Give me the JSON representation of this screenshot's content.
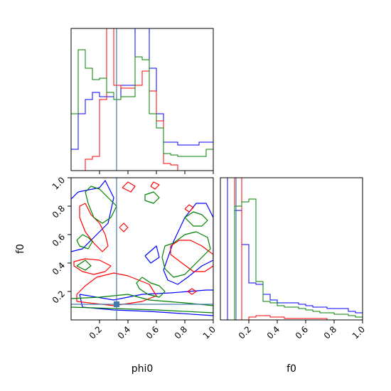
{
  "chart_data": {
    "type": "corner",
    "parameters": [
      "phi0",
      "f0"
    ],
    "truth": {
      "phi0": 0.32,
      "f0": 0.11
    },
    "truth_color": "#4477aa",
    "series": [
      {
        "color": "#0000ff"
      },
      {
        "color": "#ff0000"
      },
      {
        "color": "#008000"
      }
    ],
    "bins": [
      0.0,
      0.05,
      0.1,
      0.15,
      0.2,
      0.25,
      0.3,
      0.35,
      0.4,
      0.45,
      0.5,
      0.55,
      0.6,
      0.65,
      0.7,
      0.75,
      0.8,
      0.85,
      0.9,
      0.95,
      1.0
    ],
    "hist_phi0": {
      "ylim": [
        0,
        1.0
      ],
      "blue": [
        0.15,
        0.4,
        0.5,
        0.55,
        0.52,
        0.52,
        0.5,
        0.6,
        0.6,
        1.2,
        1.1,
        0.72,
        0.4,
        0.2,
        0.2,
        0.18,
        0.18,
        0.18,
        0.2,
        0.2
      ],
      "red": [
        0.0,
        0.0,
        0.08,
        0.1,
        0.5,
        1.2,
        0.6,
        0.58,
        0.58,
        0.6,
        0.7,
        0.56,
        0.35,
        0.05,
        0.04,
        0.0,
        0.0,
        0.0,
        0.0,
        0.0
      ],
      "green": [
        0.4,
        0.85,
        0.72,
        0.64,
        0.65,
        0.55,
        0.5,
        0.52,
        0.52,
        0.8,
        0.78,
        0.4,
        0.3,
        0.12,
        0.11,
        0.1,
        0.1,
        0.1,
        0.1,
        0.15
      ]
    },
    "hist_f0": {
      "ylim": [
        0,
        1.0
      ],
      "blue": [
        0.0,
        1.0,
        0.77,
        0.53,
        0.26,
        0.25,
        0.18,
        0.14,
        0.12,
        0.12,
        0.12,
        0.11,
        0.1,
        0.09,
        0.09,
        0.08,
        0.08,
        0.08,
        0.06,
        0.05
      ],
      "red": [
        0.0,
        0.0,
        1.0,
        0.0,
        0.02,
        0.03,
        0.03,
        0.02,
        0.02,
        0.01,
        0.01,
        0.01,
        0.01,
        0.01,
        0.01,
        0.0,
        0.0,
        0.0,
        0.0,
        0.0
      ],
      "green": [
        0.0,
        0.0,
        0.8,
        0.83,
        0.85,
        0.27,
        0.13,
        0.12,
        0.1,
        0.09,
        0.09,
        0.08,
        0.07,
        0.06,
        0.05,
        0.05,
        0.04,
        0.04,
        0.03,
        0.02
      ]
    },
    "contours": {
      "blue": [
        [
          [
            0.06,
            0.18
          ],
          [
            0.3,
            0.14
          ],
          [
            0.5,
            0.18
          ],
          [
            0.7,
            0.19
          ],
          [
            0.95,
            0.21
          ],
          [
            1.0,
            0.21
          ],
          [
            1.0,
            0.03
          ],
          [
            0.55,
            0.06
          ],
          [
            0.3,
            0.07
          ],
          [
            0.08,
            0.09
          ],
          [
            0.06,
            0.18
          ]
        ],
        [
          [
            0.05,
            0.9
          ],
          [
            0.2,
            0.93
          ],
          [
            0.24,
            0.98
          ],
          [
            0.3,
            0.86
          ],
          [
            0.26,
            0.68
          ],
          [
            0.16,
            0.58
          ],
          [
            0.08,
            0.5
          ],
          [
            0.0,
            0.48
          ],
          [
            0.0,
            0.85
          ],
          [
            0.05,
            0.9
          ]
        ],
        [
          [
            0.65,
            0.35
          ],
          [
            0.72,
            0.55
          ],
          [
            0.8,
            0.72
          ],
          [
            0.88,
            0.82
          ],
          [
            0.95,
            0.82
          ],
          [
            1.0,
            0.72
          ],
          [
            1.0,
            0.42
          ],
          [
            0.92,
            0.38
          ],
          [
            0.82,
            0.3
          ],
          [
            0.75,
            0.25
          ],
          [
            0.68,
            0.28
          ],
          [
            0.65,
            0.35
          ]
        ],
        [
          [
            0.52,
            0.45
          ],
          [
            0.6,
            0.52
          ],
          [
            0.62,
            0.44
          ],
          [
            0.56,
            0.4
          ],
          [
            0.52,
            0.45
          ]
        ]
      ],
      "red": [
        [
          [
            0.04,
            0.13
          ],
          [
            0.3,
            0.1
          ],
          [
            0.5,
            0.13
          ],
          [
            0.6,
            0.17
          ],
          [
            0.55,
            0.25
          ],
          [
            0.4,
            0.31
          ],
          [
            0.3,
            0.33
          ],
          [
            0.18,
            0.3
          ],
          [
            0.1,
            0.24
          ],
          [
            0.04,
            0.18
          ],
          [
            0.04,
            0.13
          ]
        ],
        [
          [
            0.1,
            0.82
          ],
          [
            0.14,
            0.74
          ],
          [
            0.2,
            0.68
          ],
          [
            0.24,
            0.6
          ],
          [
            0.26,
            0.52
          ],
          [
            0.22,
            0.48
          ],
          [
            0.16,
            0.54
          ],
          [
            0.1,
            0.62
          ],
          [
            0.06,
            0.72
          ],
          [
            0.06,
            0.8
          ],
          [
            0.1,
            0.82
          ]
        ],
        [
          [
            0.02,
            0.38
          ],
          [
            0.08,
            0.34
          ],
          [
            0.16,
            0.32
          ],
          [
            0.24,
            0.34
          ],
          [
            0.28,
            0.38
          ],
          [
            0.2,
            0.42
          ],
          [
            0.1,
            0.43
          ],
          [
            0.02,
            0.41
          ],
          [
            0.02,
            0.38
          ]
        ],
        [
          [
            0.7,
            0.46
          ],
          [
            0.78,
            0.4
          ],
          [
            0.86,
            0.34
          ],
          [
            0.94,
            0.34
          ],
          [
            1.0,
            0.38
          ],
          [
            1.0,
            0.46
          ],
          [
            0.92,
            0.52
          ],
          [
            0.84,
            0.56
          ],
          [
            0.76,
            0.56
          ],
          [
            0.7,
            0.52
          ],
          [
            0.7,
            0.46
          ]
        ],
        [
          [
            0.36,
            0.93
          ],
          [
            0.42,
            0.9
          ],
          [
            0.45,
            0.94
          ],
          [
            0.4,
            0.97
          ],
          [
            0.36,
            0.93
          ]
        ],
        [
          [
            0.56,
            0.94
          ],
          [
            0.59,
            0.92
          ],
          [
            0.62,
            0.95
          ],
          [
            0.58,
            0.97
          ],
          [
            0.56,
            0.94
          ]
        ],
        [
          [
            0.8,
            0.78
          ],
          [
            0.83,
            0.76
          ],
          [
            0.86,
            0.79
          ],
          [
            0.83,
            0.81
          ],
          [
            0.8,
            0.78
          ]
        ],
        [
          [
            0.82,
            0.2
          ],
          [
            0.85,
            0.18
          ],
          [
            0.88,
            0.2
          ],
          [
            0.85,
            0.22
          ],
          [
            0.82,
            0.2
          ]
        ],
        [
          [
            0.34,
            0.65
          ],
          [
            0.37,
            0.62
          ],
          [
            0.4,
            0.65
          ],
          [
            0.37,
            0.68
          ],
          [
            0.34,
            0.65
          ]
        ]
      ],
      "green": [
        [
          [
            0.0,
            0.15
          ],
          [
            0.2,
            0.16
          ],
          [
            0.4,
            0.18
          ],
          [
            0.55,
            0.14
          ],
          [
            0.8,
            0.12
          ],
          [
            1.0,
            0.1
          ],
          [
            1.0,
            0.05
          ],
          [
            0.6,
            0.07
          ],
          [
            0.3,
            0.08
          ],
          [
            0.0,
            0.09
          ],
          [
            0.0,
            0.15
          ]
        ],
        [
          [
            0.08,
            0.6
          ],
          [
            0.12,
            0.58
          ],
          [
            0.15,
            0.55
          ],
          [
            0.12,
            0.5
          ],
          [
            0.06,
            0.52
          ],
          [
            0.04,
            0.56
          ],
          [
            0.08,
            0.6
          ]
        ],
        [
          [
            0.14,
            0.94
          ],
          [
            0.2,
            0.92
          ],
          [
            0.26,
            0.86
          ],
          [
            0.32,
            0.8
          ],
          [
            0.28,
            0.72
          ],
          [
            0.22,
            0.68
          ],
          [
            0.16,
            0.72
          ],
          [
            0.12,
            0.82
          ],
          [
            0.1,
            0.9
          ],
          [
            0.14,
            0.94
          ]
        ],
        [
          [
            0.52,
            0.84
          ],
          [
            0.58,
            0.82
          ],
          [
            0.62,
            0.86
          ],
          [
            0.58,
            0.9
          ],
          [
            0.52,
            0.88
          ],
          [
            0.52,
            0.84
          ]
        ],
        [
          [
            0.66,
            0.52
          ],
          [
            0.72,
            0.54
          ],
          [
            0.8,
            0.6
          ],
          [
            0.88,
            0.62
          ],
          [
            0.96,
            0.58
          ],
          [
            0.98,
            0.5
          ],
          [
            0.92,
            0.44
          ],
          [
            0.86,
            0.38
          ],
          [
            0.8,
            0.32
          ],
          [
            0.72,
            0.3
          ],
          [
            0.66,
            0.36
          ],
          [
            0.64,
            0.44
          ],
          [
            0.66,
            0.52
          ]
        ],
        [
          [
            0.5,
            0.3
          ],
          [
            0.56,
            0.26
          ],
          [
            0.62,
            0.24
          ],
          [
            0.66,
            0.2
          ],
          [
            0.62,
            0.16
          ],
          [
            0.54,
            0.18
          ],
          [
            0.48,
            0.22
          ],
          [
            0.46,
            0.26
          ],
          [
            0.5,
            0.3
          ]
        ],
        [
          [
            0.8,
            0.72
          ],
          [
            0.86,
            0.76
          ],
          [
            0.92,
            0.74
          ],
          [
            0.96,
            0.7
          ],
          [
            0.92,
            0.66
          ],
          [
            0.86,
            0.66
          ],
          [
            0.8,
            0.72
          ]
        ],
        [
          [
            0.04,
            0.38
          ],
          [
            0.1,
            0.35
          ],
          [
            0.14,
            0.38
          ],
          [
            0.1,
            0.42
          ],
          [
            0.04,
            0.38
          ]
        ]
      ]
    },
    "ticks": [
      "0.2",
      "0.4",
      "0.6",
      "0.8",
      "1.0"
    ],
    "xlabel_phi0": "phi0",
    "xlabel_f0": "f0",
    "ylabel_f0": "f0"
  }
}
